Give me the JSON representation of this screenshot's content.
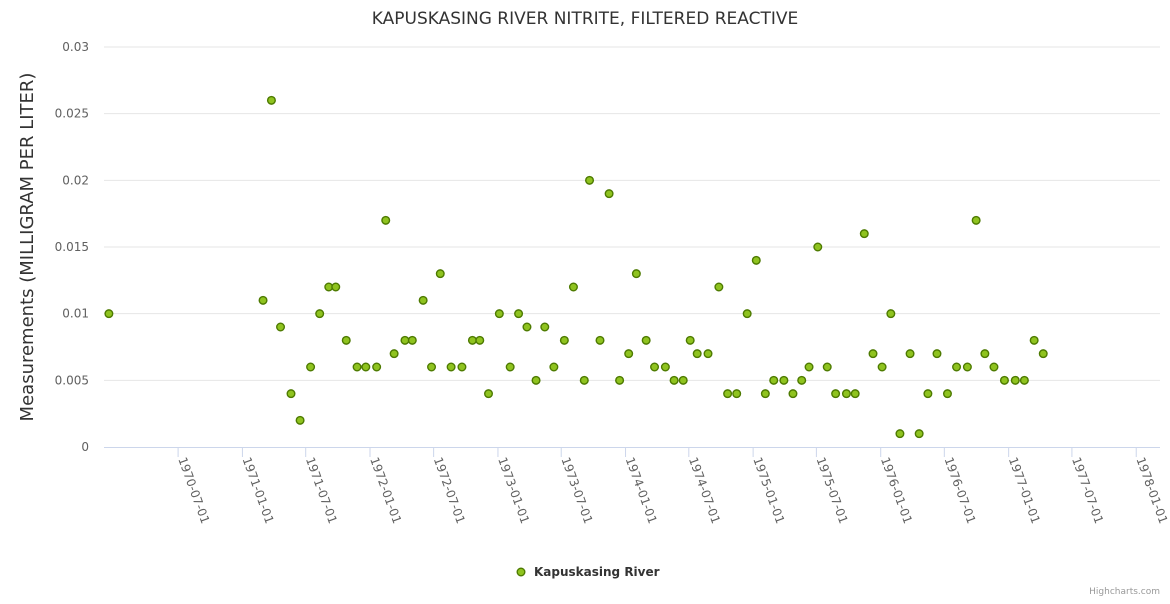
{
  "chart_data": {
    "type": "scatter",
    "title": "KAPUSKASING RIVER NITRITE, FILTERED REACTIVE",
    "ylabel": "Measurements (MILLIGRAM PER LITER)",
    "xlabel": "",
    "ylim": [
      0,
      0.03
    ],
    "yticks": [
      "0",
      "0.005",
      "0.01",
      "0.015",
      "0.02",
      "0.025",
      "0.03"
    ],
    "xlim": [
      "1969-12-01",
      "1978-03-10"
    ],
    "xticks": [
      "1970-07-01",
      "1971-01-01",
      "1971-07-01",
      "1972-01-01",
      "1972-07-01",
      "1973-01-01",
      "1973-07-01",
      "1974-01-01",
      "1974-07-01",
      "1975-01-01",
      "1975-07-01",
      "1976-01-01",
      "1976-07-01",
      "1977-01-01",
      "1977-07-01",
      "1978-01-01"
    ],
    "grid": true,
    "legend_position": "bottom-center",
    "color": "#8fc31f",
    "marker_stroke": "#4d7a00",
    "series": [
      {
        "name": "Kapuskasing River",
        "points": [
          [
            "1969-12-15",
            0.01
          ],
          [
            "1971-03-01",
            0.011
          ],
          [
            "1971-03-25",
            0.026
          ],
          [
            "1971-04-20",
            0.009
          ],
          [
            "1971-05-20",
            0.004
          ],
          [
            "1971-06-15",
            0.002
          ],
          [
            "1971-07-15",
            0.006
          ],
          [
            "1971-08-10",
            0.01
          ],
          [
            "1971-09-05",
            0.012
          ],
          [
            "1971-09-25",
            0.012
          ],
          [
            "1971-10-25",
            0.008
          ],
          [
            "1971-11-25",
            0.006
          ],
          [
            "1971-12-20",
            0.006
          ],
          [
            "1972-01-20",
            0.006
          ],
          [
            "1972-02-15",
            0.017
          ],
          [
            "1972-03-10",
            0.007
          ],
          [
            "1972-04-10",
            0.008
          ],
          [
            "1972-05-01",
            0.008
          ],
          [
            "1972-06-01",
            0.011
          ],
          [
            "1972-06-25",
            0.006
          ],
          [
            "1972-07-20",
            0.013
          ],
          [
            "1972-08-20",
            0.006
          ],
          [
            "1972-09-20",
            0.006
          ],
          [
            "1972-10-20",
            0.008
          ],
          [
            "1972-11-10",
            0.008
          ],
          [
            "1972-12-05",
            0.004
          ],
          [
            "1973-01-05",
            0.01
          ],
          [
            "1973-02-05",
            0.006
          ],
          [
            "1973-03-01",
            0.01
          ],
          [
            "1973-03-25",
            0.009
          ],
          [
            "1973-04-20",
            0.005
          ],
          [
            "1973-05-15",
            0.009
          ],
          [
            "1973-06-10",
            0.006
          ],
          [
            "1973-07-10",
            0.008
          ],
          [
            "1973-08-05",
            0.012
          ],
          [
            "1973-09-05",
            0.005
          ],
          [
            "1973-09-20",
            0.02
          ],
          [
            "1973-10-20",
            0.008
          ],
          [
            "1973-11-15",
            0.019
          ],
          [
            "1973-12-15",
            0.005
          ],
          [
            "1974-01-10",
            0.007
          ],
          [
            "1974-02-01",
            0.013
          ],
          [
            "1974-03-01",
            0.008
          ],
          [
            "1974-03-25",
            0.006
          ],
          [
            "1974-04-25",
            0.006
          ],
          [
            "1974-05-20",
            0.005
          ],
          [
            "1974-06-15",
            0.005
          ],
          [
            "1974-07-05",
            0.008
          ],
          [
            "1974-07-25",
            0.007
          ],
          [
            "1974-08-25",
            0.007
          ],
          [
            "1974-09-25",
            0.012
          ],
          [
            "1974-10-20",
            0.004
          ],
          [
            "1974-11-15",
            0.004
          ],
          [
            "1974-12-15",
            0.01
          ],
          [
            "1975-01-10",
            0.014
          ],
          [
            "1975-02-05",
            0.004
          ],
          [
            "1975-03-01",
            0.005
          ],
          [
            "1975-03-30",
            0.005
          ],
          [
            "1975-04-25",
            0.004
          ],
          [
            "1975-05-20",
            0.005
          ],
          [
            "1975-06-10",
            0.006
          ],
          [
            "1975-07-05",
            0.015
          ],
          [
            "1975-08-01",
            0.006
          ],
          [
            "1975-08-25",
            0.004
          ],
          [
            "1975-09-25",
            0.004
          ],
          [
            "1975-10-20",
            0.004
          ],
          [
            "1975-11-15",
            0.016
          ],
          [
            "1975-12-10",
            0.007
          ],
          [
            "1976-01-05",
            0.006
          ],
          [
            "1976-01-30",
            0.01
          ],
          [
            "1976-02-25",
            0.001
          ],
          [
            "1976-03-25",
            0.007
          ],
          [
            "1976-04-20",
            0.001
          ],
          [
            "1976-05-15",
            0.004
          ],
          [
            "1976-06-10",
            0.007
          ],
          [
            "1976-07-10",
            0.004
          ],
          [
            "1976-08-05",
            0.006
          ],
          [
            "1976-09-05",
            0.006
          ],
          [
            "1976-09-30",
            0.017
          ],
          [
            "1976-10-25",
            0.007
          ],
          [
            "1976-11-20",
            0.006
          ],
          [
            "1976-12-20",
            0.005
          ],
          [
            "1977-01-20",
            0.005
          ],
          [
            "1977-02-15",
            0.005
          ],
          [
            "1977-03-15",
            0.008
          ],
          [
            "1977-04-10",
            0.007
          ]
        ]
      }
    ]
  },
  "credit": "Highcharts.com"
}
